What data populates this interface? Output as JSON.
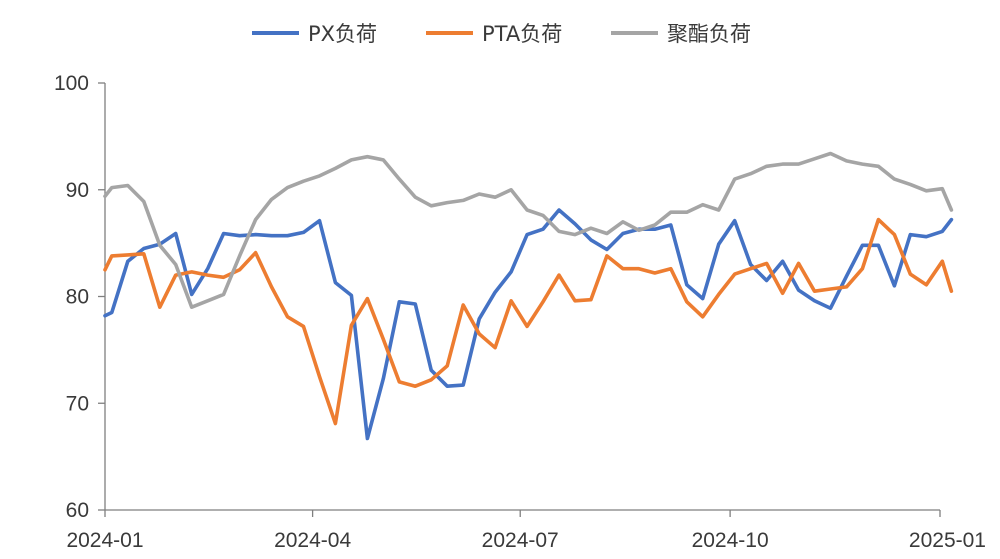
{
  "chart_data": {
    "type": "line",
    "title": "",
    "xlabel": "",
    "ylabel": "",
    "ylim": [
      60,
      100
    ],
    "yticks": [
      60,
      70,
      80,
      90,
      100
    ],
    "xlim": [
      "2024-01-01",
      "2025-01-01"
    ],
    "xticks": [
      "2024-01",
      "2024-04",
      "2024-07",
      "2024-10",
      "2025-01"
    ],
    "grid": false,
    "legend_position": "top",
    "series": [
      {
        "name": "PX负荷",
        "color": "#4472C4",
        "points": [
          [
            "2024-01-01",
            78.2
          ],
          [
            "2024-01-04",
            78.5
          ],
          [
            "2024-01-11",
            83.3
          ],
          [
            "2024-01-18",
            84.5
          ],
          [
            "2024-01-25",
            84.9
          ],
          [
            "2024-02-01",
            85.9
          ],
          [
            "2024-02-08",
            80.2
          ],
          [
            "2024-02-15",
            82.6
          ],
          [
            "2024-02-22",
            85.9
          ],
          [
            "2024-02-29",
            85.7
          ],
          [
            "2024-03-07",
            85.8
          ],
          [
            "2024-03-14",
            85.7
          ],
          [
            "2024-03-21",
            85.7
          ],
          [
            "2024-03-28",
            86.0
          ],
          [
            "2024-04-04",
            87.1
          ],
          [
            "2024-04-11",
            81.3
          ],
          [
            "2024-04-18",
            80.1
          ],
          [
            "2024-04-25",
            66.7
          ],
          [
            "2024-05-02",
            72.3
          ],
          [
            "2024-05-09",
            79.5
          ],
          [
            "2024-05-16",
            79.3
          ],
          [
            "2024-05-23",
            73.1
          ],
          [
            "2024-05-30",
            71.6
          ],
          [
            "2024-06-06",
            71.7
          ],
          [
            "2024-06-13",
            77.9
          ],
          [
            "2024-06-20",
            80.4
          ],
          [
            "2024-06-27",
            82.3
          ],
          [
            "2024-07-04",
            85.8
          ],
          [
            "2024-07-11",
            86.3
          ],
          [
            "2024-07-18",
            88.1
          ],
          [
            "2024-07-25",
            86.8
          ],
          [
            "2024-08-01",
            85.3
          ],
          [
            "2024-08-08",
            84.4
          ],
          [
            "2024-08-15",
            85.9
          ],
          [
            "2024-08-22",
            86.3
          ],
          [
            "2024-08-29",
            86.3
          ],
          [
            "2024-09-05",
            86.7
          ],
          [
            "2024-09-12",
            81.1
          ],
          [
            "2024-09-19",
            79.8
          ],
          [
            "2024-09-26",
            84.9
          ],
          [
            "2024-10-03",
            87.1
          ],
          [
            "2024-10-10",
            83.0
          ],
          [
            "2024-10-17",
            81.5
          ],
          [
            "2024-10-24",
            83.3
          ],
          [
            "2024-10-31",
            80.6
          ],
          [
            "2024-11-07",
            79.6
          ],
          [
            "2024-11-14",
            78.9
          ],
          [
            "2024-11-21",
            81.9
          ],
          [
            "2024-11-28",
            84.8
          ],
          [
            "2024-12-05",
            84.8
          ],
          [
            "2024-12-12",
            81.0
          ],
          [
            "2024-12-19",
            85.8
          ],
          [
            "2024-12-26",
            85.6
          ],
          [
            "2025-01-02",
            86.1
          ],
          [
            "2025-01-06",
            87.2
          ]
        ]
      },
      {
        "name": "PTA负荷",
        "color": "#ED7D31",
        "points": [
          [
            "2024-01-01",
            82.5
          ],
          [
            "2024-01-04",
            83.8
          ],
          [
            "2024-01-11",
            83.9
          ],
          [
            "2024-01-18",
            84.0
          ],
          [
            "2024-01-25",
            79.0
          ],
          [
            "2024-02-01",
            82.0
          ],
          [
            "2024-02-08",
            82.3
          ],
          [
            "2024-02-15",
            82.0
          ],
          [
            "2024-02-22",
            81.8
          ],
          [
            "2024-02-29",
            82.5
          ],
          [
            "2024-03-07",
            84.1
          ],
          [
            "2024-03-14",
            80.9
          ],
          [
            "2024-03-21",
            78.1
          ],
          [
            "2024-03-28",
            77.2
          ],
          [
            "2024-04-04",
            72.5
          ],
          [
            "2024-04-11",
            68.1
          ],
          [
            "2024-04-18",
            77.3
          ],
          [
            "2024-04-25",
            79.8
          ],
          [
            "2024-05-02",
            76.0
          ],
          [
            "2024-05-09",
            72.0
          ],
          [
            "2024-05-16",
            71.6
          ],
          [
            "2024-05-23",
            72.2
          ],
          [
            "2024-05-30",
            73.5
          ],
          [
            "2024-06-06",
            79.2
          ],
          [
            "2024-06-13",
            76.5
          ],
          [
            "2024-06-20",
            75.2
          ],
          [
            "2024-06-27",
            79.6
          ],
          [
            "2024-07-04",
            77.2
          ],
          [
            "2024-07-11",
            79.5
          ],
          [
            "2024-07-18",
            82.0
          ],
          [
            "2024-07-25",
            79.6
          ],
          [
            "2024-08-01",
            79.7
          ],
          [
            "2024-08-08",
            83.8
          ],
          [
            "2024-08-15",
            82.6
          ],
          [
            "2024-08-22",
            82.6
          ],
          [
            "2024-08-29",
            82.2
          ],
          [
            "2024-09-05",
            82.6
          ],
          [
            "2024-09-12",
            79.5
          ],
          [
            "2024-09-19",
            78.1
          ],
          [
            "2024-09-26",
            80.2
          ],
          [
            "2024-10-03",
            82.1
          ],
          [
            "2024-10-10",
            82.6
          ],
          [
            "2024-10-17",
            83.1
          ],
          [
            "2024-10-24",
            80.3
          ],
          [
            "2024-10-31",
            83.1
          ],
          [
            "2024-11-07",
            80.5
          ],
          [
            "2024-11-14",
            80.7
          ],
          [
            "2024-11-21",
            80.9
          ],
          [
            "2024-11-28",
            82.6
          ],
          [
            "2024-12-05",
            87.2
          ],
          [
            "2024-12-12",
            85.8
          ],
          [
            "2024-12-19",
            82.1
          ],
          [
            "2024-12-26",
            81.1
          ],
          [
            "2025-01-02",
            83.3
          ],
          [
            "2025-01-06",
            80.5
          ]
        ]
      },
      {
        "name": "聚酯负荷",
        "color": "#A5A5A5",
        "points": [
          [
            "2024-01-01",
            89.4
          ],
          [
            "2024-01-04",
            90.2
          ],
          [
            "2024-01-11",
            90.4
          ],
          [
            "2024-01-18",
            88.9
          ],
          [
            "2024-01-25",
            84.8
          ],
          [
            "2024-02-01",
            83.0
          ],
          [
            "2024-02-08",
            79.0
          ],
          [
            "2024-02-15",
            79.6
          ],
          [
            "2024-02-22",
            80.2
          ],
          [
            "2024-02-29",
            83.8
          ],
          [
            "2024-03-07",
            87.2
          ],
          [
            "2024-03-14",
            89.1
          ],
          [
            "2024-03-21",
            90.2
          ],
          [
            "2024-03-28",
            90.8
          ],
          [
            "2024-04-04",
            91.3
          ],
          [
            "2024-04-11",
            92.0
          ],
          [
            "2024-04-18",
            92.8
          ],
          [
            "2024-04-25",
            93.1
          ],
          [
            "2024-05-02",
            92.8
          ],
          [
            "2024-05-09",
            91.0
          ],
          [
            "2024-05-16",
            89.3
          ],
          [
            "2024-05-23",
            88.5
          ],
          [
            "2024-05-30",
            88.8
          ],
          [
            "2024-06-06",
            89.0
          ],
          [
            "2024-06-13",
            89.6
          ],
          [
            "2024-06-20",
            89.3
          ],
          [
            "2024-06-27",
            90.0
          ],
          [
            "2024-07-04",
            88.1
          ],
          [
            "2024-07-11",
            87.6
          ],
          [
            "2024-07-18",
            86.1
          ],
          [
            "2024-07-25",
            85.8
          ],
          [
            "2024-08-01",
            86.4
          ],
          [
            "2024-08-08",
            85.9
          ],
          [
            "2024-08-15",
            87.0
          ],
          [
            "2024-08-22",
            86.2
          ],
          [
            "2024-08-29",
            86.7
          ],
          [
            "2024-09-05",
            87.9
          ],
          [
            "2024-09-12",
            87.9
          ],
          [
            "2024-09-19",
            88.6
          ],
          [
            "2024-09-26",
            88.1
          ],
          [
            "2024-10-03",
            91.0
          ],
          [
            "2024-10-10",
            91.5
          ],
          [
            "2024-10-17",
            92.2
          ],
          [
            "2024-10-24",
            92.4
          ],
          [
            "2024-10-31",
            92.4
          ],
          [
            "2024-11-07",
            92.9
          ],
          [
            "2024-11-14",
            93.4
          ],
          [
            "2024-11-21",
            92.7
          ],
          [
            "2024-11-28",
            92.4
          ],
          [
            "2024-12-05",
            92.2
          ],
          [
            "2024-12-12",
            91.0
          ],
          [
            "2024-12-19",
            90.5
          ],
          [
            "2024-12-26",
            89.9
          ],
          [
            "2025-01-02",
            90.1
          ],
          [
            "2025-01-06",
            88.1
          ]
        ]
      }
    ]
  }
}
